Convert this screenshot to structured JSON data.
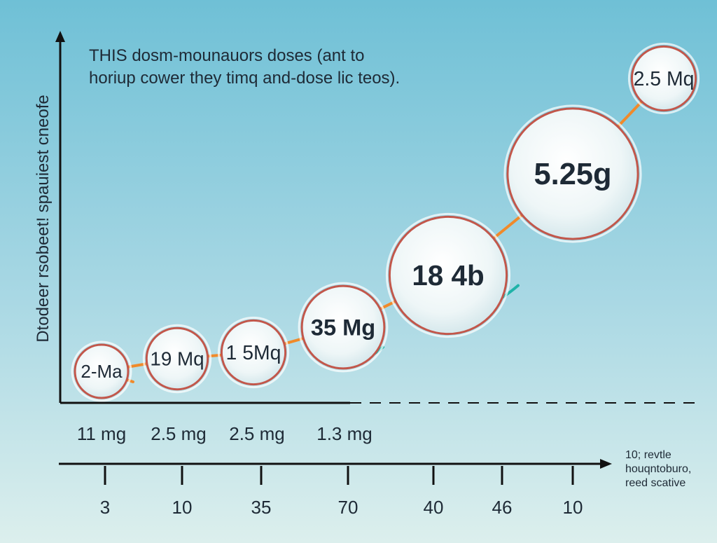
{
  "chart_data": {
    "type": "scatter",
    "annotation": {
      "line1": "THIS dosm-mounauors doses (ant to",
      "line2": "horiup cower they timq and-dose lic teos)."
    },
    "ylabel": "Dtodeer rsobeet! spauiest cneofe",
    "x_axis_note": [
      "10; revtle",
      "houqntoburo,",
      "reed scative"
    ],
    "lower_labels": [
      "11 mg",
      "2.5 mg",
      "2.5 mg",
      "1.3 mg"
    ],
    "x_ticks": [
      "3",
      "10",
      "35",
      "70",
      "40",
      "46",
      "10"
    ],
    "points": [
      {
        "label": "2-Ma",
        "size": 1
      },
      {
        "label": "19 Mq",
        "size": 1.15
      },
      {
        "label": "1 5Mq",
        "size": 1.2
      },
      {
        "label": "35 Mg",
        "size": 1.55
      },
      {
        "label": "18 4b",
        "size": 2.2
      },
      {
        "label": "5.25g",
        "size": 2.45
      },
      {
        "label": "2.5 Mq",
        "size": 1.2
      }
    ],
    "grid": false,
    "legend": "none"
  },
  "colors": {
    "axis": "#111111",
    "trend": "#f08a2a",
    "bubble_ring": "#c2574b",
    "bubble_fill": "#f2f8f8",
    "swoosh": "#1fb3a8",
    "text": "#1e2a36"
  }
}
